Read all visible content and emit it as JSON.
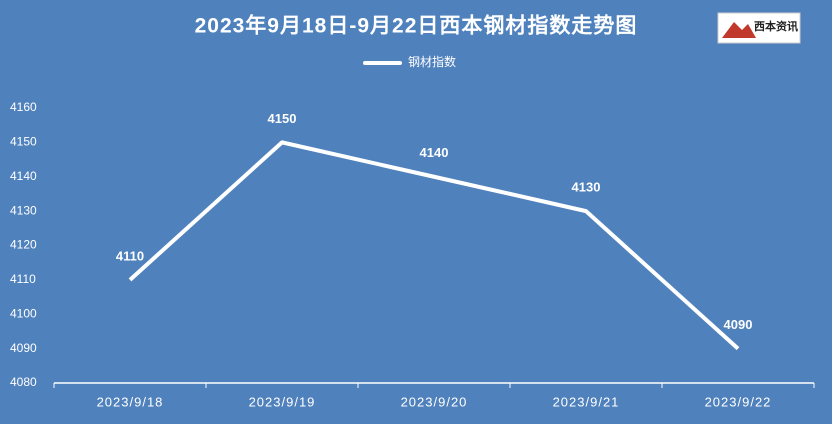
{
  "chart_data": {
    "type": "line",
    "title": "2023年9月18日-9月22日西本钢材指数走势图",
    "logo": "西本资讯",
    "categories": [
      "2023/9/18",
      "2023/9/19",
      "2023/9/20",
      "2023/9/21",
      "2023/9/22"
    ],
    "series": [
      {
        "name": "钢材指数",
        "color": "#ffffff",
        "values": [
          4110,
          4150,
          4140,
          4130,
          4090
        ]
      }
    ],
    "ylim": [
      4080,
      4160
    ],
    "yticks": [
      4080,
      4090,
      4100,
      4110,
      4120,
      4130,
      4140,
      4150,
      4160
    ],
    "grid": false,
    "legend": "top",
    "background": "#4f81bd"
  }
}
